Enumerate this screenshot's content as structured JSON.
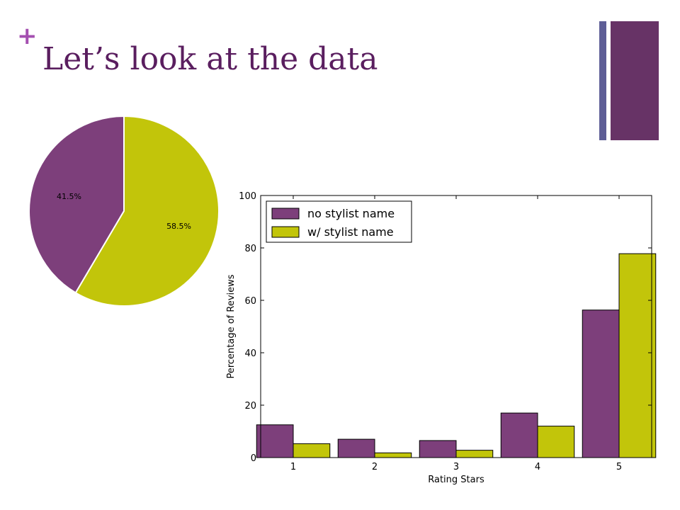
{
  "slide": {
    "marker": "+",
    "title": "Let’s look at the data"
  },
  "colors": {
    "accent_plus": "#a44fb0",
    "title_text": "#5a1e5f",
    "deco_thin": "#5e5e96",
    "deco_wide": "#673366",
    "series_no_stylist": "#7d3f7b",
    "series_with_stylist": "#c2c50a",
    "axis": "#000000"
  },
  "chart_data": [
    {
      "type": "pie",
      "labels": [
        "",
        ""
      ],
      "values": [
        41.5,
        58.5
      ],
      "slice_labels": [
        "41.5%",
        "58.5%"
      ],
      "colors": [
        "#7d3f7b",
        "#c2c50a"
      ],
      "start_angle_deg": 90,
      "direction": "counterclockwise"
    },
    {
      "type": "bar",
      "categories": [
        "1",
        "2",
        "3",
        "4",
        "5"
      ],
      "series": [
        {
          "name": "no stylist name",
          "values": [
            12.5,
            7.0,
            6.5,
            17.0,
            56.3
          ],
          "color": "#7d3f7b"
        },
        {
          "name": "w/ stylist name",
          "values": [
            5.3,
            1.8,
            2.8,
            12.0,
            77.8
          ],
          "color": "#c2c50a"
        }
      ],
      "xlabel": "Rating Stars",
      "ylabel": "Percentage of Reviews",
      "ylim": [
        0,
        100
      ],
      "yticks": [
        "0",
        "20",
        "40",
        "60",
        "80",
        "100"
      ],
      "grid": false,
      "legend_position": "top-left"
    }
  ]
}
